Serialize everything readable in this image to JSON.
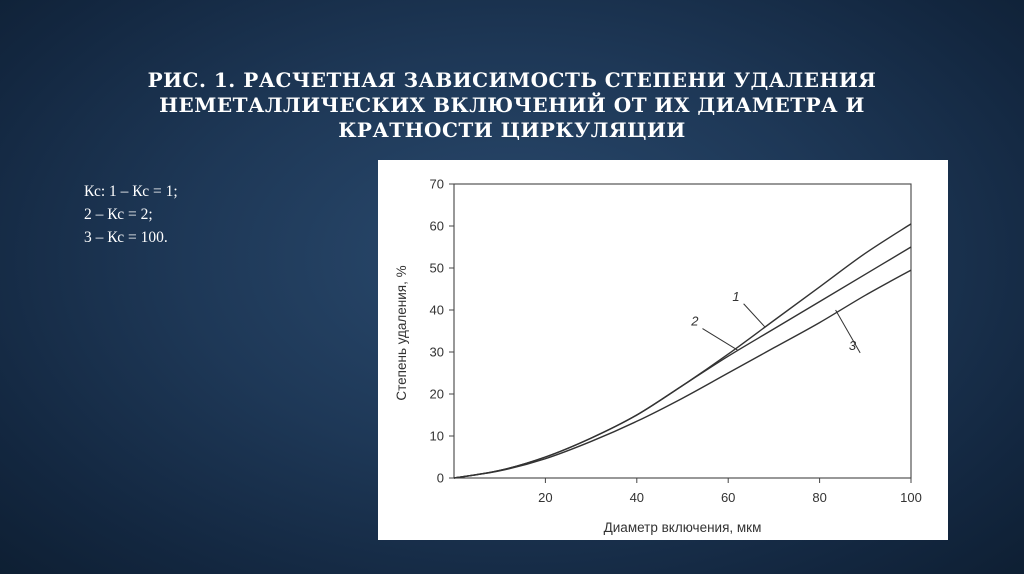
{
  "slide": {
    "title": "РИС. 1. РАСЧЕТНАЯ ЗАВИСИМОСТЬ СТЕПЕНИ УДАЛЕНИЯ НЕМЕТАЛЛИЧЕСКИХ ВКЛЮЧЕНИЙ ОТ ИХ ДИАМЕТРА И КРАТНОСТИ ЦИРКУЛЯЦИИ",
    "notes": [
      "Кс: 1 – Кс = 1;",
      "2 – Кс = 2;",
      "3 – Кс = 100."
    ]
  },
  "colors": {
    "background": "#1e3857",
    "title": "#ffffff",
    "curve": "#333333"
  },
  "chart_data": {
    "type": "line",
    "title": "",
    "xlabel": "Диаметр включения, мкм",
    "ylabel": "Степень удаления, %",
    "xlim": [
      0,
      100
    ],
    "ylim": [
      0,
      70
    ],
    "xticks": [
      20,
      40,
      60,
      80,
      100
    ],
    "yticks": [
      0,
      10,
      20,
      30,
      40,
      50,
      60,
      70
    ],
    "grid": false,
    "legend": "none",
    "series": [
      {
        "name": "1",
        "x": [
          0,
          10,
          20,
          30,
          40,
          50,
          60,
          70,
          80,
          90,
          100
        ],
        "y": [
          0,
          1.8,
          5,
          9.5,
          15,
          22,
          29.5,
          37.5,
          45.5,
          53.5,
          60.5
        ]
      },
      {
        "name": "2",
        "x": [
          0,
          10,
          20,
          30,
          40,
          50,
          60,
          70,
          80,
          90,
          100
        ],
        "y": [
          0,
          1.8,
          5,
          9.5,
          15,
          22,
          29,
          35.5,
          42,
          48.5,
          55
        ]
      },
      {
        "name": "3",
        "x": [
          0,
          10,
          20,
          30,
          40,
          50,
          60,
          70,
          80,
          90,
          100
        ],
        "y": [
          0,
          1.7,
          4.6,
          8.7,
          13.5,
          19,
          25,
          31,
          37,
          43.5,
          49.5
        ]
      }
    ]
  }
}
